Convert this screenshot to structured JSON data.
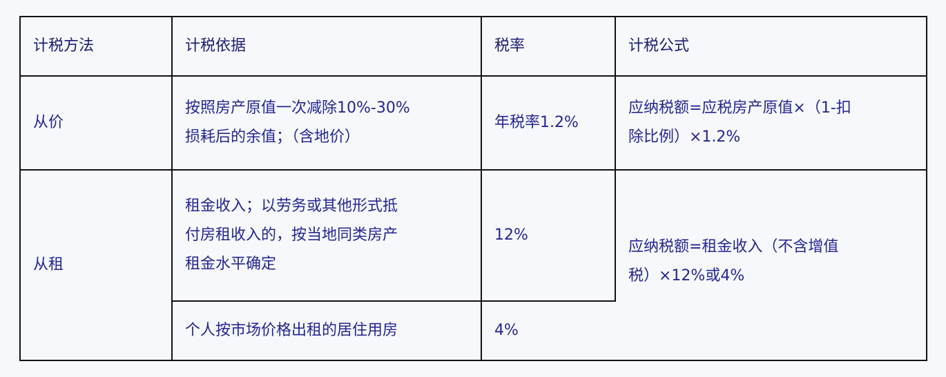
{
  "table": {
    "headers": [
      "计税方法",
      "计税依据",
      "税率",
      "计税公式"
    ],
    "rows": [
      {
        "method": "从价",
        "basis": [
          "按照房产原值一次减除10%-30%",
          "损耗后的余值；（含地价）"
        ],
        "rate": "年税率1.2%",
        "formula": [
          "应纳税额=应税房产原值×（1-扣",
          "除比例）×1.2%"
        ]
      },
      {
        "method": "从租",
        "sub_rows": [
          {
            "basis": [
              "租金收入；以劳务或其他形式抵",
              "付房租收入的，按当地同类房产",
              "租金水平确定"
            ],
            "rate": "12%"
          },
          {
            "basis": [
              "个人按市场价格出租的居住用房"
            ],
            "rate": "4%"
          }
        ],
        "formula": [
          "应纳税额=租金收入（不含增值",
          "税）×12%或4%"
        ]
      }
    ]
  },
  "colors": {
    "text": "#262690",
    "border": "#111111",
    "background": "#f6f8fc"
  }
}
